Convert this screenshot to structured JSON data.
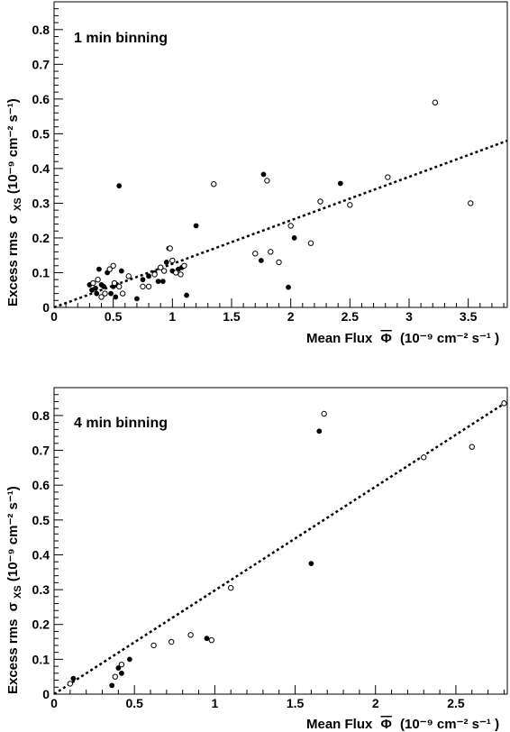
{
  "chart_data": [
    {
      "type": "scatter",
      "title": "1 min binning",
      "xlabel": "Mean Flux",
      "xlabel_symbol": "Φ",
      "xlabel_units": "(10⁻⁹ cm⁻² s⁻¹ )",
      "ylabel": "Excess rms",
      "ylabel_symbol": "σ",
      "ylabel_subscript": "XS",
      "ylabel_units": "(10⁻⁹ cm⁻² s⁻¹)",
      "xlim": [
        0,
        3.83
      ],
      "ylim": [
        0,
        0.88
      ],
      "x_ticks": [
        0,
        0.5,
        1,
        1.5,
        2,
        2.5,
        3,
        3.5
      ],
      "x_tick_labels": [
        "0",
        "0.5",
        "1",
        "1.5",
        "2",
        "2.5",
        "3",
        "3.5"
      ],
      "y_ticks": [
        0,
        0.1,
        0.2,
        0.3,
        0.4,
        0.5,
        0.6,
        0.7,
        0.8
      ],
      "y_tick_labels": [
        "0",
        "0.1",
        "0.2",
        "0.3",
        "0.4",
        "0.5",
        "0.6",
        "0.7",
        "0.8"
      ],
      "grid": false,
      "fit_line": {
        "x": [
          0,
          3.83
        ],
        "y": [
          0,
          0.48
        ]
      },
      "series": [
        {
          "marker": "filled",
          "points": [
            [
              0.3,
              0.065
            ],
            [
              0.32,
              0.05
            ],
            [
              0.35,
              0.055
            ],
            [
              0.36,
              0.04
            ],
            [
              0.38,
              0.11
            ],
            [
              0.4,
              0.065
            ],
            [
              0.42,
              0.06
            ],
            [
              0.45,
              0.1
            ],
            [
              0.48,
              0.04
            ],
            [
              0.5,
              0.06
            ],
            [
              0.52,
              0.03
            ],
            [
              0.53,
              0.065
            ],
            [
              0.55,
              0.35
            ],
            [
              0.57,
              0.105
            ],
            [
              0.7,
              0.025
            ],
            [
              0.75,
              0.08
            ],
            [
              0.8,
              0.09
            ],
            [
              0.85,
              0.1
            ],
            [
              0.88,
              0.075
            ],
            [
              0.92,
              0.075
            ],
            [
              0.95,
              0.13
            ],
            [
              0.97,
              0.17
            ],
            [
              1.0,
              0.105
            ],
            [
              1.05,
              0.11
            ],
            [
              1.08,
              0.115
            ],
            [
              1.12,
              0.035
            ],
            [
              1.2,
              0.235
            ],
            [
              1.75,
              0.135
            ],
            [
              1.77,
              0.383
            ],
            [
              1.98,
              0.058
            ],
            [
              2.03,
              0.2
            ],
            [
              2.42,
              0.357
            ]
          ]
        },
        {
          "marker": "open",
          "points": [
            [
              0.33,
              0.07
            ],
            [
              0.37,
              0.08
            ],
            [
              0.4,
              0.03
            ],
            [
              0.43,
              0.04
            ],
            [
              0.47,
              0.11
            ],
            [
              0.5,
              0.12
            ],
            [
              0.51,
              0.07
            ],
            [
              0.55,
              0.06
            ],
            [
              0.58,
              0.04
            ],
            [
              0.63,
              0.09
            ],
            [
              0.75,
              0.06
            ],
            [
              0.8,
              0.06
            ],
            [
              0.85,
              0.095
            ],
            [
              0.9,
              0.115
            ],
            [
              0.93,
              0.105
            ],
            [
              0.98,
              0.17
            ],
            [
              1.0,
              0.135
            ],
            [
              1.03,
              0.1
            ],
            [
              1.07,
              0.095
            ],
            [
              1.1,
              0.12
            ],
            [
              1.35,
              0.355
            ],
            [
              1.7,
              0.155
            ],
            [
              1.8,
              0.365
            ],
            [
              1.83,
              0.16
            ],
            [
              1.9,
              0.13
            ],
            [
              2.0,
              0.235
            ],
            [
              2.17,
              0.185
            ],
            [
              2.25,
              0.305
            ],
            [
              2.5,
              0.295
            ],
            [
              2.82,
              0.375
            ],
            [
              3.22,
              0.59
            ],
            [
              3.52,
              0.3
            ]
          ]
        }
      ]
    },
    {
      "type": "scatter",
      "title": "4 min binning",
      "xlabel": "Mean Flux",
      "xlabel_symbol": "Φ",
      "xlabel_units": "(10⁻⁹ cm⁻² s⁻¹ )",
      "ylabel": "Excess rms",
      "ylabel_symbol": "σ",
      "ylabel_subscript": "XS",
      "ylabel_units": "(10⁻⁹ cm⁻² s⁻¹)",
      "xlim": [
        0,
        2.82
      ],
      "ylim": [
        0,
        0.88
      ],
      "x_ticks": [
        0,
        0.5,
        1,
        1.5,
        2,
        2.5
      ],
      "x_tick_labels": [
        "0",
        "0.5",
        "1",
        "1.5",
        "2",
        "2.5"
      ],
      "y_ticks": [
        0,
        0.1,
        0.2,
        0.3,
        0.4,
        0.5,
        0.6,
        0.7,
        0.8
      ],
      "y_tick_labels": [
        "0",
        "0.1",
        "0.2",
        "0.3",
        "0.4",
        "0.5",
        "0.6",
        "0.7",
        "0.8"
      ],
      "grid": false,
      "fit_line": {
        "x": [
          0,
          2.82
        ],
        "y": [
          0,
          0.84
        ]
      },
      "series": [
        {
          "marker": "filled",
          "points": [
            [
              0.12,
              0.045
            ],
            [
              0.36,
              0.025
            ],
            [
              0.4,
              0.075
            ],
            [
              0.42,
              0.06
            ],
            [
              0.47,
              0.1
            ],
            [
              0.95,
              0.16
            ],
            [
              1.6,
              0.375
            ],
            [
              1.65,
              0.755
            ]
          ]
        },
        {
          "marker": "open",
          "points": [
            [
              0.1,
              0.03
            ],
            [
              0.38,
              0.05
            ],
            [
              0.42,
              0.085
            ],
            [
              0.62,
              0.14
            ],
            [
              0.73,
              0.15
            ],
            [
              0.85,
              0.17
            ],
            [
              0.98,
              0.155
            ],
            [
              1.1,
              0.305
            ],
            [
              1.68,
              0.805
            ],
            [
              2.3,
              0.68
            ],
            [
              2.6,
              0.71
            ],
            [
              2.8,
              0.835
            ]
          ]
        }
      ]
    }
  ]
}
